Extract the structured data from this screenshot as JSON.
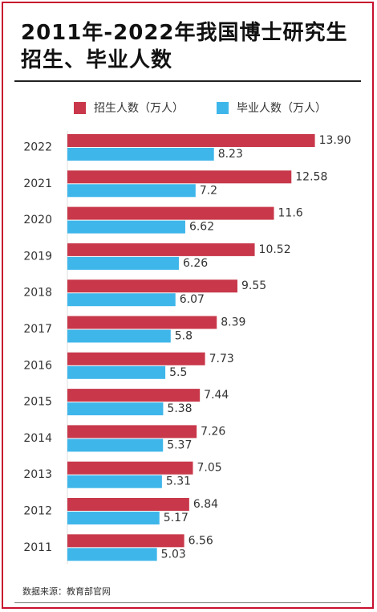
{
  "title": "2011年-2022年我国博士研究生招生、毕业人数",
  "source": "数据来源：教育部官网",
  "colors": {
    "enrollment": "#c8384a",
    "graduation": "#3fb6ea",
    "frame": "#c8102e"
  },
  "chart_data": {
    "type": "bar",
    "orientation": "horizontal",
    "categories": [
      "2022",
      "2021",
      "2020",
      "2019",
      "2018",
      "2017",
      "2016",
      "2015",
      "2014",
      "2013",
      "2012",
      "2011"
    ],
    "series": [
      {
        "name": "招生人数（万人）",
        "values": [
          13.9,
          12.58,
          11.6,
          10.52,
          9.55,
          8.39,
          7.73,
          7.44,
          7.26,
          7.05,
          6.84,
          6.56
        ],
        "labels": [
          "13.90",
          "12.58",
          "11.6",
          "10.52",
          "9.55",
          "8.39",
          "7.73",
          "7.44",
          "7.26",
          "7.05",
          "6.84",
          "6.56"
        ]
      },
      {
        "name": "毕业人数（万人）",
        "values": [
          8.23,
          7.2,
          6.62,
          6.26,
          6.07,
          5.8,
          5.5,
          5.38,
          5.37,
          5.31,
          5.17,
          5.03
        ],
        "labels": [
          "8.23",
          "7.2",
          "6.62",
          "6.26",
          "6.07",
          "5.8",
          "5.5",
          "5.38",
          "5.37",
          "5.31",
          "5.17",
          "5.03"
        ]
      }
    ],
    "legend_position": "top",
    "grid": false
  }
}
